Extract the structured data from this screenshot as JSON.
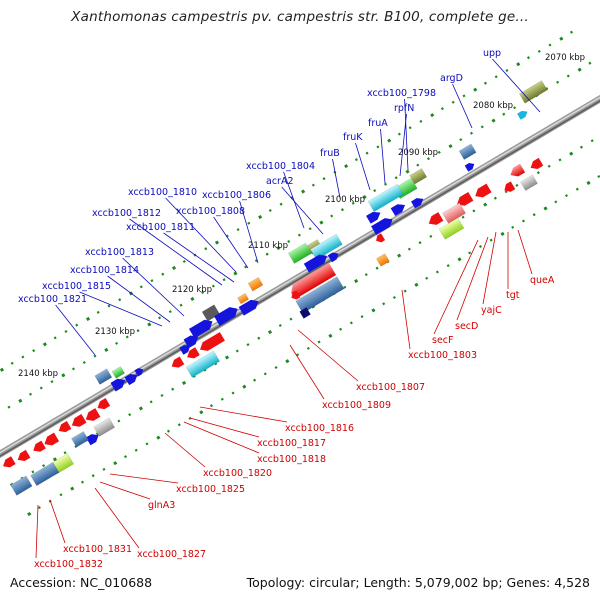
{
  "title": "Xanthomonas campestris pv. campestris str. B100, complete ge...",
  "footer": {
    "accession": "Accession: NC_010688",
    "summary": "Topology: circular; Length: 5,079,002 bp; Genes: 4,528"
  },
  "colors": {
    "label_blue": "#0b0bbf",
    "label_red": "#d10000",
    "tick_green": "#1c8a1c",
    "axis_gray": "#8a8a8a",
    "gene_blue": "#1414dc",
    "gene_red": "#ee1111"
  },
  "scale_labels": [
    "2070 kbp",
    "2080 kbp",
    "2090 kbp",
    "2100 kbp",
    "2110 kbp",
    "2120 kbp",
    "2130 kbp",
    "2140 kbp"
  ],
  "forward_labels": [
    "upp",
    "argD",
    "xccb100_1798",
    "rpfN",
    "fruA",
    "fruK",
    "fruB",
    "xccb100_1804",
    "acrA2",
    "xccb100_1806",
    "xccb100_1810",
    "xccb100_1808",
    "xccb100_1812",
    "xccb100_1811",
    "xccb100_1813",
    "xccb100_1814",
    "xccb100_1815",
    "xccb100_1821"
  ],
  "reverse_labels": [
    "queA",
    "tgt",
    "yajC",
    "secD",
    "secF",
    "xccb100_1803",
    "xccb100_1807",
    "xccb100_1809",
    "xccb100_1816",
    "xccb100_1817",
    "xccb100_1818",
    "xccb100_1820",
    "xccb100_1825",
    "glnA3",
    "xccb100_1827",
    "xccb100_1831",
    "xccb100_1832"
  ]
}
